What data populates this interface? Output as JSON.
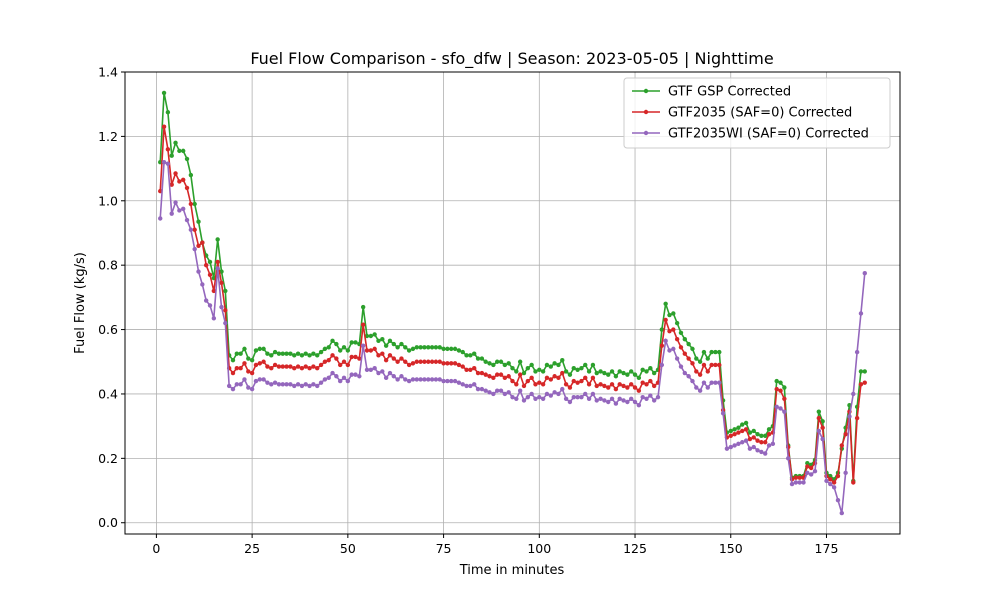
{
  "chart_data": {
    "type": "line",
    "title": "Fuel Flow Comparison - sfo_dfw | Season: 2023-05-05 | Nighttime",
    "x_label": "Time in minutes",
    "y_label": "Fuel Flow (kg/s)",
    "x": [
      1,
      2,
      3,
      4,
      5,
      6,
      7,
      8,
      9,
      10,
      11,
      12,
      13,
      14,
      15,
      16,
      17,
      18,
      19,
      20,
      21,
      22,
      23,
      24,
      25,
      26,
      27,
      28,
      29,
      30,
      31,
      32,
      33,
      34,
      35,
      36,
      37,
      38,
      39,
      40,
      41,
      42,
      43,
      44,
      45,
      46,
      47,
      48,
      49,
      50,
      51,
      52,
      53,
      54,
      55,
      56,
      57,
      58,
      59,
      60,
      61,
      62,
      63,
      64,
      65,
      66,
      67,
      68,
      69,
      70,
      71,
      72,
      73,
      74,
      75,
      76,
      77,
      78,
      79,
      80,
      81,
      82,
      83,
      84,
      85,
      86,
      87,
      88,
      89,
      90,
      91,
      92,
      93,
      94,
      95,
      96,
      97,
      98,
      99,
      100,
      101,
      102,
      103,
      104,
      105,
      106,
      107,
      108,
      109,
      110,
      111,
      112,
      113,
      114,
      115,
      116,
      117,
      118,
      119,
      120,
      121,
      122,
      123,
      124,
      125,
      126,
      127,
      128,
      129,
      130,
      131,
      132,
      133,
      134,
      135,
      136,
      137,
      138,
      139,
      140,
      141,
      142,
      143,
      144,
      145,
      146,
      147,
      148,
      149,
      150,
      151,
      152,
      153,
      154,
      155,
      156,
      157,
      158,
      159,
      160,
      161,
      162,
      163,
      164,
      165,
      166,
      167,
      168,
      169,
      170,
      171,
      172,
      173,
      174,
      175,
      176,
      177,
      178,
      179,
      180,
      181,
      182,
      183,
      184,
      185
    ],
    "series": [
      {
        "name": "GTF GSP Corrected",
        "color": "#2ca02c",
        "values": [
          1.12,
          1.335,
          1.275,
          1.14,
          1.18,
          1.155,
          1.155,
          1.13,
          1.08,
          0.99,
          0.935,
          0.87,
          0.83,
          0.81,
          0.76,
          0.88,
          0.78,
          0.72,
          0.52,
          0.505,
          0.525,
          0.525,
          0.54,
          0.51,
          0.505,
          0.535,
          0.54,
          0.54,
          0.525,
          0.52,
          0.53,
          0.525,
          0.525,
          0.525,
          0.525,
          0.52,
          0.525,
          0.52,
          0.525,
          0.52,
          0.525,
          0.52,
          0.53,
          0.54,
          0.545,
          0.565,
          0.555,
          0.535,
          0.545,
          0.535,
          0.56,
          0.56,
          0.555,
          0.67,
          0.58,
          0.58,
          0.585,
          0.565,
          0.57,
          0.55,
          0.565,
          0.555,
          0.545,
          0.555,
          0.545,
          0.535,
          0.54,
          0.545,
          0.545,
          0.545,
          0.545,
          0.545,
          0.545,
          0.545,
          0.54,
          0.54,
          0.54,
          0.54,
          0.535,
          0.53,
          0.52,
          0.52,
          0.525,
          0.51,
          0.51,
          0.5,
          0.495,
          0.49,
          0.5,
          0.5,
          0.49,
          0.495,
          0.48,
          0.47,
          0.5,
          0.465,
          0.48,
          0.49,
          0.47,
          0.475,
          0.47,
          0.49,
          0.485,
          0.495,
          0.49,
          0.505,
          0.47,
          0.46,
          0.48,
          0.475,
          0.48,
          0.49,
          0.47,
          0.49,
          0.465,
          0.47,
          0.465,
          0.46,
          0.47,
          0.455,
          0.47,
          0.465,
          0.46,
          0.47,
          0.46,
          0.45,
          0.475,
          0.47,
          0.48,
          0.465,
          0.475,
          0.6,
          0.68,
          0.645,
          0.65,
          0.62,
          0.59,
          0.57,
          0.555,
          0.54,
          0.51,
          0.5,
          0.53,
          0.51,
          0.53,
          0.53,
          0.53,
          0.38,
          0.28,
          0.285,
          0.29,
          0.295,
          0.305,
          0.31,
          0.28,
          0.285,
          0.275,
          0.27,
          0.27,
          0.29,
          0.3,
          0.44,
          0.435,
          0.42,
          0.24,
          0.14,
          0.145,
          0.145,
          0.145,
          0.185,
          0.18,
          0.195,
          0.345,
          0.315,
          0.155,
          0.145,
          0.135,
          0.155,
          0.23,
          0.295,
          0.365,
          0.13,
          0.36,
          0.47,
          0.47
        ]
      },
      {
        "name": "GTF2035 (SAF=0) Corrected",
        "color": "#d62728",
        "values": [
          1.03,
          1.23,
          1.16,
          1.05,
          1.085,
          1.06,
          1.065,
          1.04,
          0.99,
          0.91,
          0.86,
          0.87,
          0.8,
          0.77,
          0.72,
          0.81,
          0.745,
          0.66,
          0.48,
          0.465,
          0.48,
          0.48,
          0.495,
          0.47,
          0.465,
          0.49,
          0.495,
          0.5,
          0.485,
          0.48,
          0.49,
          0.485,
          0.485,
          0.485,
          0.485,
          0.48,
          0.485,
          0.48,
          0.485,
          0.48,
          0.485,
          0.48,
          0.49,
          0.5,
          0.505,
          0.52,
          0.51,
          0.49,
          0.5,
          0.49,
          0.515,
          0.515,
          0.51,
          0.615,
          0.535,
          0.535,
          0.54,
          0.52,
          0.525,
          0.505,
          0.52,
          0.51,
          0.5,
          0.51,
          0.5,
          0.49,
          0.495,
          0.5,
          0.5,
          0.5,
          0.5,
          0.5,
          0.5,
          0.5,
          0.495,
          0.495,
          0.495,
          0.495,
          0.49,
          0.485,
          0.475,
          0.475,
          0.48,
          0.465,
          0.465,
          0.46,
          0.455,
          0.45,
          0.46,
          0.46,
          0.45,
          0.455,
          0.44,
          0.43,
          0.46,
          0.425,
          0.44,
          0.45,
          0.43,
          0.435,
          0.43,
          0.45,
          0.445,
          0.455,
          0.45,
          0.465,
          0.43,
          0.42,
          0.44,
          0.435,
          0.44,
          0.45,
          0.43,
          0.45,
          0.425,
          0.43,
          0.425,
          0.42,
          0.43,
          0.415,
          0.43,
          0.425,
          0.42,
          0.43,
          0.42,
          0.41,
          0.435,
          0.43,
          0.44,
          0.425,
          0.435,
          0.55,
          0.63,
          0.595,
          0.6,
          0.57,
          0.545,
          0.525,
          0.51,
          0.495,
          0.47,
          0.46,
          0.49,
          0.47,
          0.49,
          0.49,
          0.49,
          0.35,
          0.265,
          0.27,
          0.275,
          0.28,
          0.285,
          0.29,
          0.26,
          0.265,
          0.255,
          0.25,
          0.25,
          0.275,
          0.28,
          0.415,
          0.41,
          0.385,
          0.235,
          0.135,
          0.14,
          0.14,
          0.14,
          0.175,
          0.17,
          0.185,
          0.325,
          0.295,
          0.145,
          0.135,
          0.125,
          0.145,
          0.24,
          0.275,
          0.345,
          0.125,
          0.325,
          0.43,
          0.435
        ]
      },
      {
        "name": "GTF2035WI (SAF=0) Corrected",
        "color": "#9467bd",
        "values": [
          0.945,
          1.12,
          1.115,
          0.96,
          0.995,
          0.97,
          0.975,
          0.94,
          0.91,
          0.85,
          0.78,
          0.74,
          0.69,
          0.675,
          0.635,
          0.79,
          0.67,
          0.62,
          0.425,
          0.415,
          0.43,
          0.43,
          0.445,
          0.42,
          0.415,
          0.44,
          0.445,
          0.445,
          0.435,
          0.43,
          0.435,
          0.43,
          0.43,
          0.43,
          0.43,
          0.425,
          0.43,
          0.425,
          0.43,
          0.425,
          0.43,
          0.425,
          0.435,
          0.445,
          0.45,
          0.465,
          0.455,
          0.44,
          0.45,
          0.44,
          0.46,
          0.46,
          0.455,
          0.55,
          0.475,
          0.475,
          0.48,
          0.465,
          0.47,
          0.45,
          0.465,
          0.455,
          0.445,
          0.455,
          0.445,
          0.44,
          0.445,
          0.445,
          0.445,
          0.445,
          0.445,
          0.445,
          0.445,
          0.445,
          0.44,
          0.44,
          0.44,
          0.44,
          0.435,
          0.43,
          0.425,
          0.425,
          0.43,
          0.415,
          0.415,
          0.41,
          0.405,
          0.4,
          0.41,
          0.41,
          0.4,
          0.405,
          0.39,
          0.385,
          0.41,
          0.38,
          0.39,
          0.4,
          0.385,
          0.39,
          0.385,
          0.4,
          0.395,
          0.405,
          0.4,
          0.415,
          0.385,
          0.375,
          0.39,
          0.39,
          0.39,
          0.4,
          0.385,
          0.4,
          0.38,
          0.385,
          0.38,
          0.375,
          0.385,
          0.37,
          0.385,
          0.38,
          0.375,
          0.385,
          0.375,
          0.365,
          0.39,
          0.385,
          0.395,
          0.38,
          0.39,
          0.49,
          0.565,
          0.535,
          0.54,
          0.51,
          0.485,
          0.465,
          0.455,
          0.44,
          0.42,
          0.41,
          0.435,
          0.42,
          0.435,
          0.435,
          0.435,
          0.34,
          0.23,
          0.235,
          0.24,
          0.245,
          0.25,
          0.255,
          0.23,
          0.235,
          0.225,
          0.22,
          0.215,
          0.24,
          0.245,
          0.36,
          0.355,
          0.345,
          0.2,
          0.12,
          0.125,
          0.125,
          0.125,
          0.155,
          0.15,
          0.16,
          0.285,
          0.26,
          0.13,
          0.12,
          0.11,
          0.07,
          0.03,
          0.155,
          0.33,
          0.4,
          0.53,
          0.65,
          0.775
        ]
      }
    ],
    "xlim": [
      -8.2,
      194.2
    ],
    "ylim": [
      -0.035,
      1.4
    ],
    "xticks": [
      0,
      25,
      50,
      75,
      100,
      125,
      150,
      175
    ],
    "yticks": [
      {
        "value": 0,
        "label": "0.0"
      },
      0.2,
      0.4,
      0.6,
      0.8,
      {
        "value": 1,
        "label": "1.0"
      },
      1.2,
      1.4
    ],
    "grid": true,
    "legend": "upper right"
  }
}
